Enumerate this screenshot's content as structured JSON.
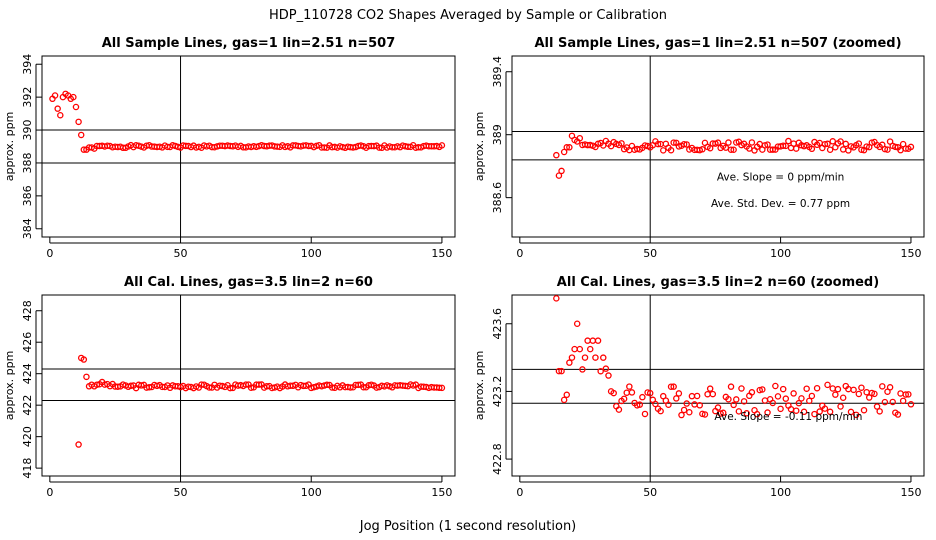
{
  "title": "HDP_110728  CO2 Shapes Averaged by Sample or Calibration",
  "xlabel": "Jog Position (1 second resolution)",
  "colors": {
    "points": "#ff0000",
    "lines": "#000000"
  },
  "chart_data": [
    {
      "type": "scatter",
      "title": "All Sample Lines, gas=1 lin=2.51 n=507",
      "ylabel": "approx. ppm",
      "xlim": [
        -3,
        155
      ],
      "ylim": [
        383.5,
        394.5
      ],
      "xticks": [
        0,
        50,
        100,
        150
      ],
      "yticks": [
        384,
        386,
        388,
        390,
        392,
        394
      ],
      "hlines": [
        390,
        388
      ],
      "vline": 50,
      "segments": [
        {
          "x": [
            1,
            2,
            3,
            4,
            5,
            6,
            7,
            8,
            9,
            10,
            11,
            12
          ],
          "y": [
            391.9,
            392.1,
            391.3,
            390.9,
            392.0,
            392.2,
            392.1,
            391.9,
            392.0,
            391.4,
            390.5,
            389.7
          ]
        },
        {
          "x0": 13,
          "x1": 150,
          "start": 388.8,
          "level": 389.0,
          "amp": 0.08,
          "seed": 1
        }
      ],
      "annotations": []
    },
    {
      "type": "scatter",
      "title": "All Sample Lines, gas=1 lin=2.51 n=507 (zoomed)",
      "ylabel": "approx. ppm",
      "xlim": [
        -3,
        155
      ],
      "ylim": [
        388.35,
        389.5
      ],
      "xticks": [
        0,
        50,
        100,
        150
      ],
      "yticks": [
        388.6,
        389.0,
        389.4
      ],
      "hlines": [
        389.02,
        388.84
      ],
      "vline": 50,
      "segments": [
        {
          "x": [
            14,
            15,
            16,
            17,
            18,
            19
          ],
          "y": [
            388.87,
            388.74,
            388.77,
            388.89,
            388.92,
            388.92
          ]
        },
        {
          "x0": 20,
          "x1": 150,
          "start": 389.0,
          "level": 388.93,
          "amp": 0.03,
          "seed": 2
        }
      ],
      "annotations": [
        {
          "text": "Ave. Slope =  0  ppm/min",
          "x": 100,
          "y": 388.71
        },
        {
          "text": "Ave. Std. Dev. =  0.77  ppm",
          "x": 100,
          "y": 388.54
        }
      ]
    },
    {
      "type": "scatter",
      "title": "All Cal. Lines, gas=3.5 lin=2 n=60",
      "ylabel": "approx. ppm",
      "xlim": [
        -3,
        155
      ],
      "ylim": [
        417.5,
        429
      ],
      "xticks": [
        0,
        50,
        100,
        150
      ],
      "yticks": [
        418,
        420,
        422,
        424,
        426,
        428
      ],
      "hlines": [
        424.3,
        422.3
      ],
      "vline": 50,
      "segments": [
        {
          "x": [
            11,
            12,
            13,
            14,
            15,
            16,
            17,
            18
          ],
          "y": [
            419.5,
            425.0,
            424.9,
            423.8,
            423.2,
            423.3,
            423.2,
            423.3
          ]
        },
        {
          "x0": 19,
          "x1": 150,
          "start": 423.4,
          "level": 423.2,
          "amp": 0.12,
          "seed": 3
        }
      ],
      "annotations": []
    },
    {
      "type": "scatter",
      "title": "All Cal. Lines, gas=3.5 lin=2 n=60 (zoomed)",
      "ylabel": "approx. ppm",
      "xlim": [
        -3,
        155
      ],
      "ylim": [
        422.7,
        423.77
      ],
      "xticks": [
        0,
        50,
        100,
        150
      ],
      "yticks": [
        422.8,
        423.2,
        423.6
      ],
      "hlines": [
        423.33,
        423.13
      ],
      "vline": 50,
      "segments": [
        {
          "x": [
            14,
            15,
            16,
            17,
            18,
            19,
            20,
            21,
            22,
            23,
            24,
            25,
            26,
            27,
            28,
            29,
            30
          ],
          "y": [
            423.75,
            423.32,
            423.32,
            423.15,
            423.18,
            423.37,
            423.4,
            423.45,
            423.6,
            423.45,
            423.33,
            423.4,
            423.5,
            423.45,
            423.5,
            423.4,
            423.5
          ]
        },
        {
          "x0": 31,
          "x1": 150,
          "start": 423.4,
          "level": 423.15,
          "amp": 0.09,
          "seed": 4
        }
      ],
      "annotations": [
        {
          "text": "Ave. Slope =  -0.11  ppm/min",
          "x": 103,
          "y": 423.03
        }
      ]
    }
  ]
}
